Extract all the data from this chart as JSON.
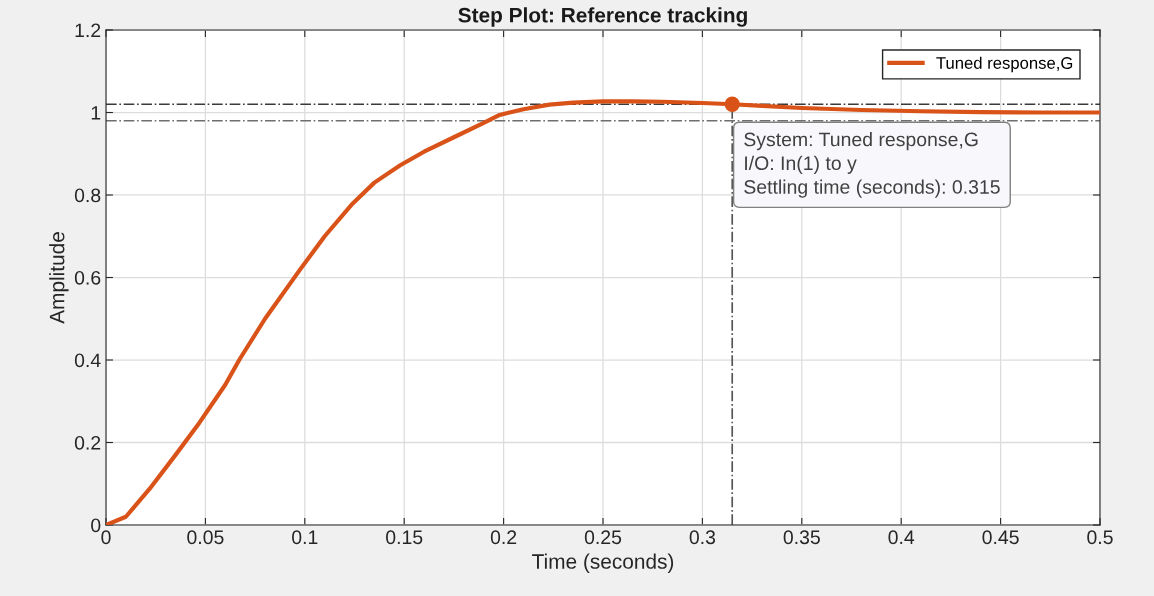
{
  "chart_data": {
    "type": "line",
    "title": "Step Plot: Reference tracking",
    "xlabel": "Time (seconds)",
    "ylabel": "Amplitude",
    "x": [
      0,
      0.01,
      0.022,
      0.035,
      0.047,
      0.06,
      0.067,
      0.08,
      0.0976,
      0.11,
      0.124,
      0.135,
      0.148,
      0.16,
      0.175,
      0.19,
      0.198,
      0.21,
      0.223,
      0.235,
      0.25,
      0.265,
      0.28,
      0.3,
      0.315,
      0.33,
      0.35,
      0.38,
      0.41,
      0.44,
      0.47,
      0.5
    ],
    "series": [
      {
        "name": "Tuned response,G",
        "color": "#d95319",
        "values": [
          0,
          0.02,
          0.088,
          0.17,
          0.248,
          0.34,
          0.4,
          0.5,
          0.619,
          0.7,
          0.779,
          0.83,
          0.872,
          0.905,
          0.94,
          0.975,
          0.994,
          1.008,
          1.019,
          1.024,
          1.027,
          1.027,
          1.026,
          1.023,
          1.02,
          1.016,
          1.011,
          1.006,
          1.003,
          1.001,
          1.0,
          1.0
        ]
      }
    ],
    "xlim": [
      0,
      0.5
    ],
    "xticks": [
      0,
      0.05,
      0.1,
      0.15,
      0.2,
      0.25,
      0.3,
      0.35,
      0.4,
      0.45,
      0.5
    ],
    "ylim": [
      0,
      1.2
    ],
    "yticks": [
      0,
      0.2,
      0.4,
      0.6,
      0.8,
      1,
      1.2
    ],
    "grid": true,
    "legend": "top right",
    "line_style": "solid",
    "marker": "none",
    "ref_lines": [
      {
        "axis": "y",
        "value": 1.02,
        "color": "#3a3a3a",
        "line_style": "dashdot"
      },
      {
        "axis": "y",
        "value": 0.98,
        "color": "#6e6e6e",
        "line_style": "dashdot"
      },
      {
        "axis": "x",
        "value": 0.315,
        "color": "#555555",
        "line_style": "dashdot"
      }
    ],
    "annotations": [
      {
        "text": "System: Tuned response,G\nI/O: In(1) to y\nSettling time (seconds): 0.315",
        "x": 0.315,
        "y": 1.02
      }
    ]
  }
}
